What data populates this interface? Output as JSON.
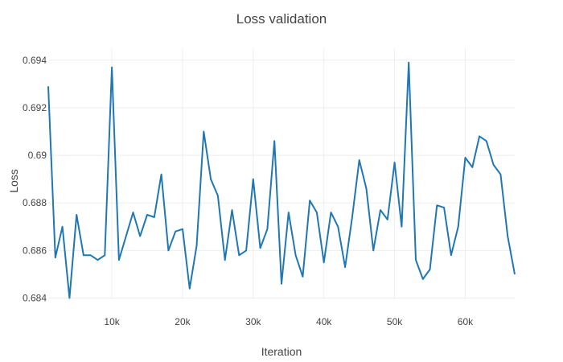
{
  "chart_data": {
    "type": "line",
    "title": "Loss validation",
    "xlabel": "Iteration",
    "ylabel": "Loss",
    "xlim": [
      1000,
      67000
    ],
    "ylim": [
      0.68395,
      0.6945
    ],
    "x_ticks": [
      10000,
      20000,
      30000,
      40000,
      50000,
      60000
    ],
    "x_tick_labels": [
      "10k",
      "20k",
      "30k",
      "40k",
      "50k",
      "60k"
    ],
    "y_ticks": [
      0.684,
      0.686,
      0.688,
      0.69,
      0.692,
      0.694
    ],
    "y_tick_labels": [
      "0.684",
      "0.686",
      "0.688",
      "0.69",
      "0.692",
      "0.694"
    ],
    "grid": true,
    "legend": "none",
    "color": "#1f77b4",
    "series": [
      {
        "x": [
          1000,
          2000,
          3000,
          4000,
          5000,
          6000,
          7000,
          8000,
          9000,
          10000,
          11000,
          12000,
          13000,
          14000,
          15000,
          16000,
          17000,
          18000,
          19000,
          20000,
          21000,
          22000,
          23000,
          24000,
          25000,
          26000,
          27000,
          28000,
          29000,
          30000,
          31000,
          32000,
          33000,
          34000,
          35000,
          36000,
          37000,
          38000,
          39000,
          40000,
          41000,
          42000,
          43000,
          44000,
          45000,
          46000,
          47000,
          48000,
          49000,
          50000,
          51000,
          52000,
          53000,
          54000,
          55000,
          56000,
          57000,
          58000,
          59000,
          60000,
          61000,
          62000,
          63000,
          64000,
          65000,
          66000,
          67000
        ],
        "y": [
          0.6929,
          0.6857,
          0.687,
          0.684,
          0.6875,
          0.6858,
          0.6858,
          0.6856,
          0.6858,
          0.6937,
          0.6856,
          0.6866,
          0.6876,
          0.6866,
          0.6875,
          0.6874,
          0.6892,
          0.686,
          0.6868,
          0.6869,
          0.6844,
          0.6862,
          0.691,
          0.689,
          0.6883,
          0.6856,
          0.6877,
          0.6858,
          0.686,
          0.689,
          0.6861,
          0.6869,
          0.6906,
          0.6846,
          0.6876,
          0.6858,
          0.6849,
          0.6881,
          0.6876,
          0.6855,
          0.6876,
          0.687,
          0.6853,
          0.6874,
          0.6898,
          0.6886,
          0.686,
          0.6877,
          0.6873,
          0.6897,
          0.687,
          0.6939,
          0.6856,
          0.6848,
          0.6852,
          0.6879,
          0.6878,
          0.6858,
          0.687,
          0.6899,
          0.6895,
          0.6908,
          0.6906,
          0.6896,
          0.6892,
          0.6866,
          0.685
        ]
      }
    ]
  }
}
